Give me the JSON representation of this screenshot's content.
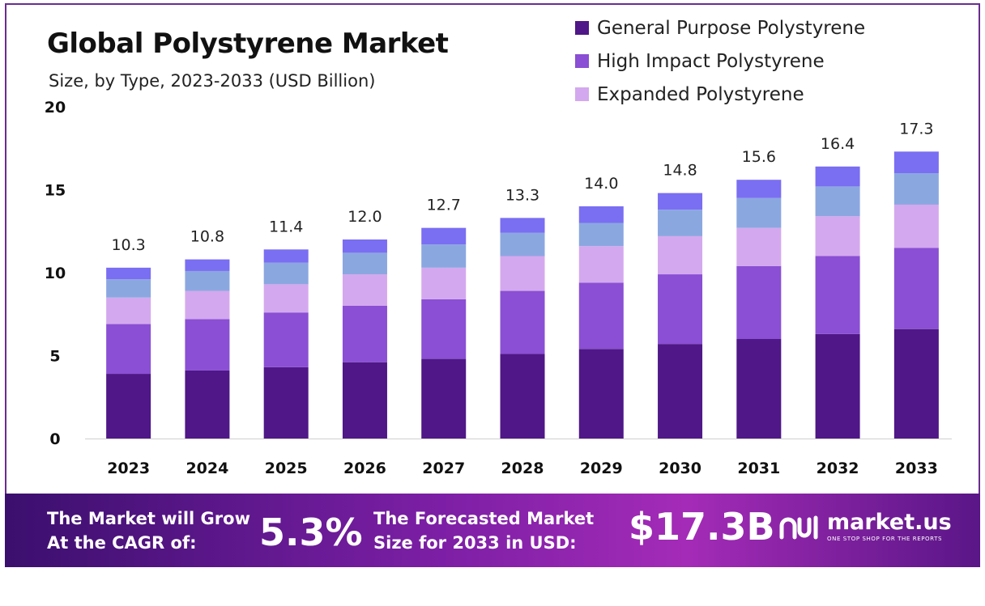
{
  "title": "Global Polystyrene Market",
  "subtitle": "Size, by Type, 2023-2033 (USD Billion)",
  "colors": {
    "general_purpose": "#4f1787",
    "high_impact": "#8a4fd4",
    "expanded": "#d4a8ee",
    "segment4": "#8ba7e0",
    "segment5": "#7a6ef2"
  },
  "legend": [
    {
      "label": "General Purpose Polystyrene",
      "color": "#4f1787"
    },
    {
      "label": "High Impact Polystyrene",
      "color": "#8a4fd4"
    },
    {
      "label": "Expanded Polystyrene",
      "color": "#d4a8ee"
    }
  ],
  "chart_data": {
    "type": "bar",
    "stacked": true,
    "title": "Global Polystyrene Market",
    "subtitle": "Size, by Type, 2023-2033 (USD Billion)",
    "xlabel": "",
    "ylabel": "",
    "ylim": [
      0,
      20
    ],
    "yticks": [
      "0",
      "5",
      "10",
      "15",
      "20"
    ],
    "categories": [
      "2023",
      "2024",
      "2025",
      "2026",
      "2027",
      "2028",
      "2029",
      "2030",
      "2031",
      "2032",
      "2033"
    ],
    "totals": [
      "10.3",
      "10.8",
      "11.4",
      "12.0",
      "12.7",
      "13.3",
      "14.0",
      "14.8",
      "15.6",
      "16.4",
      "17.3"
    ],
    "series": [
      {
        "name": "General Purpose Polystyrene",
        "color": "#4f1787",
        "values": [
          3.9,
          4.1,
          4.3,
          4.6,
          4.8,
          5.1,
          5.4,
          5.7,
          6.0,
          6.3,
          6.6
        ]
      },
      {
        "name": "High Impact Polystyrene",
        "color": "#8a4fd4",
        "values": [
          3.0,
          3.1,
          3.3,
          3.4,
          3.6,
          3.8,
          4.0,
          4.2,
          4.4,
          4.7,
          4.9
        ]
      },
      {
        "name": "Expanded Polystyrene",
        "color": "#d4a8ee",
        "values": [
          1.6,
          1.7,
          1.7,
          1.9,
          1.9,
          2.1,
          2.2,
          2.3,
          2.3,
          2.4,
          2.6
        ]
      },
      {
        "name": "",
        "color": "#8ba7e0",
        "values": [
          1.1,
          1.2,
          1.3,
          1.3,
          1.4,
          1.4,
          1.4,
          1.6,
          1.8,
          1.8,
          1.9
        ]
      },
      {
        "name": "",
        "color": "#7a6ef2",
        "values": [
          0.7,
          0.7,
          0.8,
          0.8,
          1.0,
          0.9,
          1.0,
          1.0,
          1.1,
          1.2,
          1.3
        ]
      }
    ]
  },
  "footer": {
    "cagr_label_line1": "The Market will Grow",
    "cagr_label_line2": "At the CAGR of:",
    "cagr_value": "5.3%",
    "size_label_line1": "The Forecasted Market",
    "size_label_line2": "Size for 2033 in USD:",
    "size_value": "$17.3B",
    "brand_name": "market.us",
    "brand_tagline": "ONE STOP SHOP FOR THE REPORTS"
  }
}
